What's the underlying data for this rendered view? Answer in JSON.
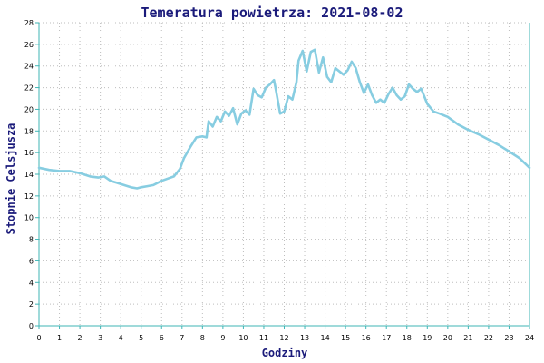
{
  "chart_data": {
    "type": "line",
    "title": "Temeratura powietrza: 2021-08-02",
    "xlabel": "Godziny",
    "ylabel": "Stopnie Celsjusza",
    "xlim": [
      0,
      24
    ],
    "ylim": [
      0,
      28
    ],
    "x_ticks": [
      "0",
      "1",
      "2",
      "3",
      "4",
      "5",
      "6",
      "7",
      "8",
      "9",
      "10",
      "11",
      "12",
      "13",
      "14",
      "15",
      "16",
      "17",
      "18",
      "19",
      "20",
      "21",
      "22",
      "23",
      "24"
    ],
    "y_ticks": [
      "0",
      "2",
      "4",
      "6",
      "8",
      "10",
      "12",
      "14",
      "16",
      "18",
      "20",
      "22",
      "24",
      "26",
      "28"
    ],
    "grid": true,
    "legend": "none",
    "line_color": "#87cde1",
    "series": [
      {
        "name": "",
        "x": [
          0,
          0.5,
          1,
          1.5,
          2,
          2.5,
          2.9,
          3.2,
          3.5,
          4,
          4.5,
          4.8,
          5,
          5.3,
          5.6,
          6,
          6.3,
          6.6,
          6.9,
          7.1,
          7.4,
          7.7,
          8,
          8.2,
          8.3,
          8.5,
          8.7,
          8.9,
          9.1,
          9.3,
          9.5,
          9.7,
          9.9,
          10.1,
          10.3,
          10.5,
          10.7,
          10.9,
          11.1,
          11.3,
          11.5,
          11.6,
          11.8,
          12,
          12.2,
          12.4,
          12.6,
          12.7,
          12.9,
          13.1,
          13.3,
          13.5,
          13.7,
          13.9,
          14.1,
          14.3,
          14.5,
          14.7,
          14.9,
          15.1,
          15.3,
          15.5,
          15.7,
          15.9,
          16.1,
          16.3,
          16.5,
          16.7,
          16.9,
          17.1,
          17.3,
          17.5,
          17.7,
          17.9,
          18.1,
          18.3,
          18.5,
          18.7,
          19,
          19.3,
          19.6,
          20,
          20.5,
          21,
          21.5,
          22,
          22.5,
          23,
          23.5,
          24
        ],
        "values": [
          14.6,
          14.4,
          14.3,
          14.3,
          14.1,
          13.8,
          13.7,
          13.8,
          13.4,
          13.1,
          12.8,
          12.7,
          12.8,
          12.9,
          13.0,
          13.4,
          13.6,
          13.8,
          14.5,
          15.5,
          16.5,
          17.4,
          17.5,
          17.4,
          18.9,
          18.4,
          19.3,
          18.9,
          19.8,
          19.4,
          20.1,
          18.6,
          19.6,
          19.9,
          19.5,
          21.9,
          21.3,
          21.1,
          22.0,
          22.3,
          22.7,
          21.7,
          19.6,
          19.8,
          21.2,
          20.9,
          22.5,
          24.5,
          25.4,
          23.5,
          25.3,
          25.5,
          23.4,
          24.8,
          23.0,
          22.5,
          23.8,
          23.5,
          23.2,
          23.6,
          24.4,
          23.8,
          22.5,
          21.5,
          22.3,
          21.3,
          20.6,
          20.9,
          20.6,
          21.4,
          22.0,
          21.3,
          20.9,
          21.2,
          22.3,
          21.9,
          21.6,
          21.9,
          20.5,
          19.8,
          19.6,
          19.3,
          18.6,
          18.1,
          17.7,
          17.2,
          16.7,
          16.1,
          15.5,
          14.6
        ]
      }
    ]
  }
}
